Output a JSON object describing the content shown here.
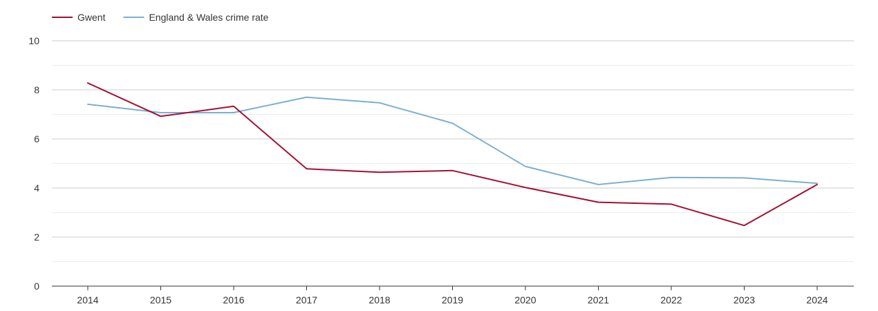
{
  "chart_data": {
    "type": "line",
    "title": "",
    "xlabel": "",
    "ylabel": "",
    "categories": [
      "2014",
      "2015",
      "2016",
      "2017",
      "2018",
      "2019",
      "2020",
      "2021",
      "2022",
      "2023",
      "2024"
    ],
    "yticks": [
      "0",
      "2",
      "4",
      "6",
      "8",
      "10"
    ],
    "ylim": [
      0,
      10
    ],
    "grid": true,
    "legend_position": "top-left",
    "series": [
      {
        "name": "Gwent",
        "color": "#a50f32",
        "values": [
          8.28,
          6.92,
          7.33,
          4.78,
          4.64,
          4.71,
          4.02,
          3.42,
          3.34,
          2.47,
          4.14
        ]
      },
      {
        "name": "England & Wales crime rate",
        "color": "#7aafd0",
        "values": [
          7.41,
          7.07,
          7.07,
          7.7,
          7.47,
          6.64,
          4.88,
          4.14,
          4.43,
          4.41,
          4.19
        ]
      }
    ]
  }
}
